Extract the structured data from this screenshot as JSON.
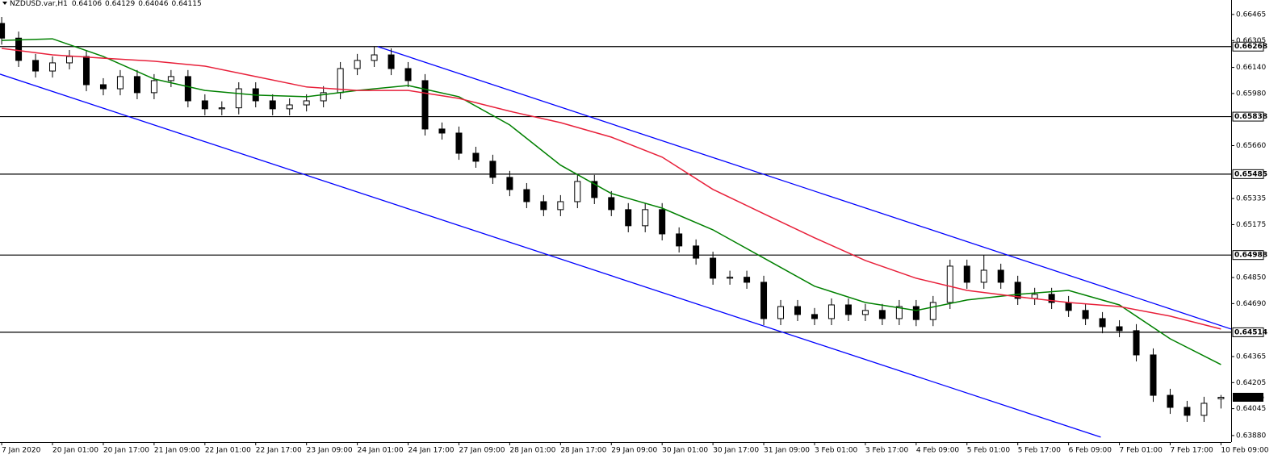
{
  "chart_data": {
    "type": "candlestick",
    "symbol": "NZDUSD.var,H1",
    "xlim": [
      -0.1,
      72.6
    ],
    "ylim": [
      0.6384,
      0.66554
    ],
    "yticks": [
      0.66465,
      0.66305,
      {
        "value": 0.6614,
        "label": "0.66140"
      },
      {
        "value": 0.6598,
        "label": "0.65980"
      },
      {
        "value": 0.6566,
        "label": "0.65660"
      },
      0.65335,
      0.65175,
      {
        "value": 0.6485,
        "label": "0.64850"
      },
      {
        "value": 0.6469,
        "label": "0.64690"
      },
      0.64365,
      0.64205,
      0.64045,
      {
        "value": 0.6388,
        "label": "0.63880"
      }
    ],
    "xticks": [
      {
        "value": 0,
        "label": "7 Jan 2020"
      },
      {
        "value": 3,
        "label": "20 Jan 01:00"
      },
      {
        "value": 6,
        "label": "20 Jan 17:00"
      },
      {
        "value": 9,
        "label": "21 Jan 09:00"
      },
      {
        "value": 12,
        "label": "22 Jan 01:00"
      },
      {
        "value": 15,
        "label": "22 Jan 17:00"
      },
      {
        "value": 18,
        "label": "23 Jan 09:00"
      },
      {
        "value": 21,
        "label": "24 Jan 01:00"
      },
      {
        "value": 24,
        "label": "24 Jan 17:00"
      },
      {
        "value": 27,
        "label": "27 Jan 09:00"
      },
      {
        "value": 30,
        "label": "28 Jan 01:00"
      },
      {
        "value": 33,
        "label": "28 Jan 17:00"
      },
      {
        "value": 36,
        "label": "29 Jan 09:00"
      },
      {
        "value": 39,
        "label": "30 Jan 01:00"
      },
      {
        "value": 42,
        "label": "30 Jan 17:00"
      },
      {
        "value": 45,
        "label": "31 Jan 09:00"
      },
      {
        "value": 48,
        "label": "3 Feb 01:00"
      },
      {
        "value": 51,
        "label": "3 Feb 17:00"
      },
      {
        "value": 54,
        "label": "4 Feb 09:00"
      },
      {
        "value": 57,
        "label": "5 Feb 01:00"
      },
      {
        "value": 60,
        "label": "5 Feb 17:00"
      },
      {
        "value": 63,
        "label": "6 Feb 09:00"
      },
      {
        "value": 66,
        "label": "7 Feb 01:00"
      },
      {
        "value": 69,
        "label": "7 Feb 17:00"
      },
      {
        "value": 72,
        "label": "10 Feb 09:00"
      }
    ],
    "candles": {
      "open": [
        0.6641,
        0.6632,
        0.66183,
        0.66118,
        0.66168,
        0.66207,
        0.66034,
        0.66009,
        0.66084,
        0.65985,
        0.66059,
        0.66084,
        0.65935,
        0.65886,
        0.65892,
        0.66009,
        0.65935,
        0.65886,
        0.6591,
        0.65935,
        0.65985,
        0.66133,
        0.66183,
        0.66217,
        0.66133,
        0.66059,
        0.65762,
        0.65737,
        0.65613,
        0.65564,
        0.65465,
        0.6539,
        0.65316,
        0.65267,
        0.65316,
        0.6544,
        0.65341,
        0.65267,
        0.65168,
        0.65267,
        0.65118,
        0.65044,
        0.64969,
        0.64846,
        0.64852,
        0.64821,
        0.64598,
        0.64672,
        0.64623,
        0.64598,
        0.64682,
        0.64623,
        0.64648,
        0.64598,
        0.64672,
        0.64592,
        0.64697,
        0.6492,
        0.64821,
        0.64895,
        0.64821,
        0.64722,
        0.64747,
        0.64697,
        0.64648,
        0.64598,
        0.64548,
        0.64524,
        0.64375,
        0.64127,
        0.64053,
        0.64004,
        0.64106
      ],
      "high": [
        0.6645,
        0.6636,
        0.66223,
        0.66208,
        0.66247,
        0.66247,
        0.66074,
        0.66124,
        0.66124,
        0.66099,
        0.66124,
        0.66124,
        0.65975,
        0.65932,
        0.66049,
        0.66049,
        0.65975,
        0.6595,
        0.65975,
        0.66025,
        0.66173,
        0.66223,
        0.66268,
        0.66257,
        0.66173,
        0.66099,
        0.65802,
        0.65777,
        0.65653,
        0.65604,
        0.65505,
        0.6543,
        0.65356,
        0.65356,
        0.6548,
        0.6548,
        0.65381,
        0.65307,
        0.65307,
        0.65307,
        0.65158,
        0.65084,
        0.65009,
        0.64892,
        0.64892,
        0.64861,
        0.64712,
        0.64712,
        0.64663,
        0.64722,
        0.64722,
        0.64688,
        0.64688,
        0.64712,
        0.64712,
        0.64737,
        0.6496,
        0.6496,
        0.64988,
        0.64935,
        0.64861,
        0.64787,
        0.64787,
        0.64737,
        0.64688,
        0.64638,
        0.64588,
        0.64564,
        0.64415,
        0.64167,
        0.64093,
        0.64118,
        0.64129
      ],
      "low": [
        0.6628,
        0.66143,
        0.66078,
        0.66078,
        0.66128,
        0.65994,
        0.65969,
        0.65969,
        0.65945,
        0.65945,
        0.66019,
        0.65895,
        0.65846,
        0.65846,
        0.65852,
        0.65895,
        0.65846,
        0.65846,
        0.6587,
        0.65895,
        0.65945,
        0.66093,
        0.66143,
        0.66093,
        0.66019,
        0.65722,
        0.65697,
        0.65573,
        0.65524,
        0.65425,
        0.6535,
        0.65276,
        0.65227,
        0.65227,
        0.65276,
        0.65301,
        0.65227,
        0.65128,
        0.65128,
        0.65078,
        0.65004,
        0.64929,
        0.64806,
        0.64806,
        0.64781,
        0.64558,
        0.64558,
        0.64583,
        0.64558,
        0.64558,
        0.64583,
        0.64583,
        0.64558,
        0.64558,
        0.64552,
        0.64552,
        0.64657,
        0.64781,
        0.64781,
        0.64781,
        0.64682,
        0.64682,
        0.64657,
        0.64608,
        0.64558,
        0.64508,
        0.64484,
        0.64335,
        0.64087,
        0.64013,
        0.63964,
        0.63964,
        0.64046
      ],
      "close": [
        0.6632,
        0.66183,
        0.66118,
        0.66168,
        0.66207,
        0.66034,
        0.66009,
        0.66084,
        0.65985,
        0.66059,
        0.66084,
        0.65935,
        0.65886,
        0.65892,
        0.66009,
        0.65935,
        0.65886,
        0.6591,
        0.65935,
        0.65985,
        0.66133,
        0.66183,
        0.66217,
        0.66133,
        0.66059,
        0.65762,
        0.65737,
        0.65613,
        0.65564,
        0.65465,
        0.6539,
        0.65316,
        0.65267,
        0.65316,
        0.6544,
        0.65341,
        0.65267,
        0.65168,
        0.65267,
        0.65118,
        0.65044,
        0.64969,
        0.64846,
        0.64852,
        0.64821,
        0.64598,
        0.64672,
        0.64623,
        0.64598,
        0.64682,
        0.64623,
        0.64648,
        0.64598,
        0.64672,
        0.64592,
        0.64697,
        0.6492,
        0.64821,
        0.64895,
        0.64821,
        0.64722,
        0.64747,
        0.64697,
        0.64648,
        0.64598,
        0.64548,
        0.64524,
        0.64375,
        0.64127,
        0.64053,
        0.64004,
        0.64078,
        0.64115
      ]
    },
    "series": [
      {
        "color": "#008000",
        "x": [
          0,
          3,
          6,
          9,
          12,
          15,
          18,
          21,
          24,
          27,
          30,
          33,
          36,
          39,
          42,
          45,
          48,
          51,
          54,
          57,
          60,
          63,
          66,
          69,
          72
        ],
        "values": [
          0.66306,
          0.66316,
          0.66207,
          0.66069,
          0.65999,
          0.6597,
          0.6596,
          0.65999,
          0.66029,
          0.6596,
          0.65787,
          0.6554,
          0.65366,
          0.65276,
          0.65143,
          0.6497,
          0.64797,
          0.64697,
          0.64648,
          0.64712,
          0.64747,
          0.64771,
          0.64682,
          0.64474,
          0.64316
        ]
      },
      {
        "color": "#e8203a",
        "x": [
          0,
          3,
          6,
          9,
          12,
          15,
          18,
          21,
          24,
          27,
          30,
          33,
          36,
          39,
          42,
          45,
          48,
          51,
          54,
          57,
          60,
          63,
          66,
          69,
          72
        ],
        "values": [
          0.66257,
          0.66217,
          0.66197,
          0.66178,
          0.66148,
          0.66084,
          0.6602,
          0.65999,
          0.65999,
          0.6595,
          0.65871,
          0.65801,
          0.65712,
          0.65589,
          0.65391,
          0.65242,
          0.65094,
          0.64955,
          0.64846,
          0.64771,
          0.64732,
          0.64697,
          0.64672,
          0.64613,
          0.64534
        ]
      }
    ],
    "trendlines": [
      {
        "color": "#0000ff",
        "x": [
          22.2,
          72.6
        ],
        "values": [
          0.66268,
          0.64534
        ]
      },
      {
        "color": "#0000ff",
        "x": [
          -0.1,
          64.9
        ],
        "values": [
          0.66099,
          0.6387
        ]
      }
    ],
    "levels": [
      {
        "value": 0.66268
      },
      {
        "value": 0.65838
      },
      {
        "value": 0.65485
      },
      {
        "value": 0.64988
      },
      {
        "value": 0.64514
      }
    ],
    "level_color": "#000000"
  }
}
